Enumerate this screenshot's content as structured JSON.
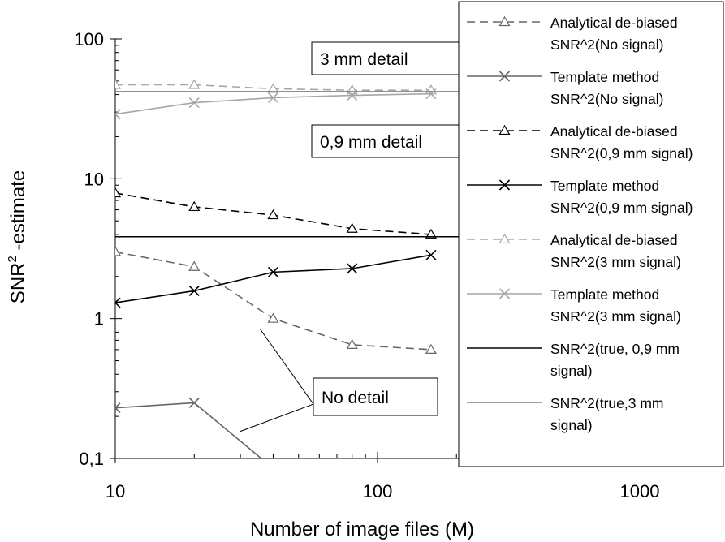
{
  "chart_data": {
    "type": "line",
    "title": "",
    "xlabel": "Number of image files (M)",
    "ylabel": "SNR",
    "ylabel_sup": "2",
    "ylabel_suffix": " -estimate",
    "x_scale": "log",
    "y_scale": "log",
    "xlim": [
      10,
      1000
    ],
    "ylim": [
      0.1,
      100
    ],
    "x_ticks": [
      {
        "value": 10,
        "label": "10"
      },
      {
        "value": 100,
        "label": "100"
      },
      {
        "value": 1000,
        "label": "1000"
      }
    ],
    "y_ticks": [
      {
        "value": 0.1,
        "label": "0,1"
      },
      {
        "value": 1,
        "label": "1"
      },
      {
        "value": 10,
        "label": "10"
      },
      {
        "value": 100,
        "label": "100"
      }
    ],
    "grid": false,
    "legend_position": "right",
    "series": [
      {
        "label_lines": [
          "Analytical de-biased",
          "SNR^2(No signal)"
        ],
        "color": "#666666",
        "dash": "dashed",
        "marker": "triangle",
        "x": [
          10,
          20,
          40,
          80,
          160
        ],
        "y": [
          3.0,
          2.35,
          1.0,
          0.65,
          0.6
        ]
      },
      {
        "label_lines": [
          "Template method",
          "SNR^2(No signal)"
        ],
        "color": "#666666",
        "dash": "solid",
        "marker": "x",
        "x": [
          10,
          20,
          40
        ],
        "y": [
          0.23,
          0.25,
          0.085
        ]
      },
      {
        "label_lines": [
          "Analytical de-biased",
          "SNR^2(0,9 mm signal)"
        ],
        "color": "#000000",
        "dash": "dashed",
        "marker": "triangle",
        "x": [
          10,
          20,
          40,
          80,
          160
        ],
        "y": [
          7.9,
          6.3,
          5.5,
          4.4,
          4.0
        ]
      },
      {
        "label_lines": [
          "Template method",
          "SNR^2(0,9 mm signal)"
        ],
        "color": "#000000",
        "dash": "solid",
        "marker": "x",
        "x": [
          10,
          20,
          40,
          80,
          160
        ],
        "y": [
          1.3,
          1.58,
          2.15,
          2.28,
          2.85
        ]
      },
      {
        "label_lines": [
          "Analytical de-biased",
          "SNR^2(3 mm signal)"
        ],
        "color": "#a6a6a6",
        "dash": "dashed",
        "marker": "triangle",
        "x": [
          10,
          20,
          40,
          80,
          160
        ],
        "y": [
          47,
          47,
          44,
          43,
          43
        ]
      },
      {
        "label_lines": [
          "Template method",
          "SNR^2(3 mm signal)"
        ],
        "color": "#a6a6a6",
        "dash": "solid",
        "marker": "x",
        "x": [
          10,
          20,
          40,
          80,
          160
        ],
        "y": [
          29,
          35,
          38,
          39.5,
          40.5
        ]
      },
      {
        "label_lines": [
          "SNR^2(true, 0,9 mm",
          "signal)"
        ],
        "color": "#000000",
        "dash": "solid",
        "marker": "none",
        "constant": 3.85
      },
      {
        "label_lines": [
          "SNR^2(true,3 mm",
          "signal)"
        ],
        "color": "#808080",
        "dash": "solid",
        "marker": "none",
        "constant": 42
      }
    ],
    "annotations": [
      {
        "text": "3 mm detail"
      },
      {
        "text": "0,9 mm detail"
      },
      {
        "text": "No detail"
      }
    ]
  }
}
